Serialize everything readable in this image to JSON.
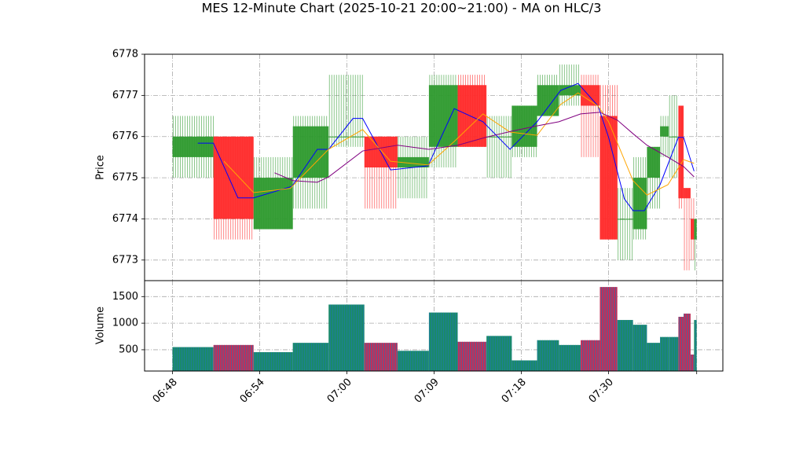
{
  "chart_data": {
    "type": "candlestick",
    "title": "MES 12-Minute Chart (2025-10-21 20:00~21:00) - MA on HLC/3",
    "ylabel": "Price",
    "edges": [
      0,
      0.47,
      0.93,
      1.38,
      1.79,
      2.2,
      2.58,
      2.94,
      3.27,
      3.6,
      3.89,
      4.18,
      4.43,
      4.68,
      4.9,
      5.1,
      5.28,
      5.44,
      5.59,
      5.69,
      5.8,
      5.86,
      5.94,
      5.98,
      6.01
    ],
    "open": [
      6775.5,
      6776,
      6773.75,
      6775,
      6776,
      6776,
      6775.25,
      6775.75,
      6777.25,
      6776,
      6775.75,
      6776.5,
      6777,
      6777.25,
      6776.5,
      6774,
      6773.75,
      6775,
      6776,
      6776,
      6776.75,
      6774.75,
      6774,
      6773.5
    ],
    "high": [
      6776.5,
      6776,
      6775.5,
      6776.5,
      6777.5,
      6776,
      6776,
      6777.5,
      6777.5,
      6776.5,
      6776.75,
      6777.5,
      6777.75,
      6777.5,
      6777.25,
      6774.75,
      6775.5,
      6775.75,
      6776.5,
      6777,
      6776.75,
      6774.75,
      6774.5,
      6774
    ],
    "low": [
      6775,
      6773.5,
      6773.75,
      6774.25,
      6775.75,
      6774.25,
      6774.5,
      6775.25,
      6775.75,
      6775,
      6775.5,
      6776.5,
      6776.75,
      6775.5,
      6773.5,
      6773,
      6773.5,
      6774.25,
      6775.5,
      6775,
      6774.25,
      6772.75,
      6773,
      6772.75
    ],
    "close": [
      6776,
      6774,
      6775,
      6776.25,
      6776,
      6775.25,
      6775.5,
      6777.25,
      6775.75,
      6776,
      6776.75,
      6777.25,
      6777.25,
      6776.75,
      6773.5,
      6774,
      6775,
      6775.75,
      6776.25,
      6776,
      6774.5,
      6774.5,
      6773.5,
      6774
    ],
    "up_color": "#2e9a2e",
    "down_color": "#ff2a2a",
    "ylim": [
      6772.5,
      6778
    ],
    "yticks": [
      6773,
      6774,
      6775,
      6776,
      6777,
      6778
    ],
    "xlim": [
      -0.32,
      6.31
    ],
    "xticks": [
      {
        "value": 0,
        "label": "06:48"
      },
      {
        "value": 1,
        "label": "06:54"
      },
      {
        "value": 2,
        "label": "07:00"
      },
      {
        "value": 3,
        "label": "07:09"
      },
      {
        "value": 4,
        "label": "07:18"
      },
      {
        "value": 5,
        "label": "07:30"
      },
      {
        "value": 6.01,
        "label": null
      }
    ],
    "grid": true,
    "lines": [
      {
        "color": "#0000ff",
        "x": [
          0.29,
          0.47,
          0.75,
          0.93,
          1.37,
          1.66,
          1.79,
          2.07,
          2.18,
          2.5,
          2.93,
          3.23,
          3.56,
          3.87,
          4.18,
          4.45,
          4.65,
          4.88,
          5.0,
          5.18,
          5.28,
          5.41,
          5.59,
          5.8,
          5.86,
          5.98
        ],
        "values": [
          6775.84,
          6775.84,
          6774.51,
          6774.51,
          6774.79,
          6775.69,
          6775.69,
          6776.44,
          6776.44,
          6775.19,
          6775.29,
          6776.68,
          6776.36,
          6775.69,
          6776.36,
          6777.12,
          6777.29,
          6776.74,
          6775.98,
          6774.49,
          6774.2,
          6774.2,
          6774.83,
          6775.98,
          6775.98,
          6775.16
        ]
      },
      {
        "color": "#ffa500",
        "x": [
          0.59,
          0.93,
          1.35,
          1.79,
          2.18,
          2.5,
          2.93,
          3.23,
          3.56,
          3.87,
          4.18,
          4.45,
          4.65,
          4.88,
          5.0,
          5.28,
          5.44,
          5.68,
          5.86,
          5.98
        ],
        "values": [
          6775.4,
          6774.64,
          6774.74,
          6775.69,
          6776.17,
          6775.4,
          6775.31,
          6775.88,
          6776.55,
          6776.11,
          6776.03,
          6776.78,
          6777.06,
          6776.74,
          6776.36,
          6774.93,
          6774.58,
          6774.83,
          6775.44,
          6775.35
        ]
      },
      {
        "color": "#800080",
        "x": [
          1.17,
          1.38,
          1.66,
          1.79,
          2.18,
          2.58,
          2.94,
          3.27,
          3.59,
          3.89,
          4.18,
          4.43,
          4.68,
          4.9,
          5.1,
          5.28,
          5.44,
          5.68,
          5.86,
          5.98
        ],
        "values": [
          6775.12,
          6774.93,
          6774.89,
          6775.02,
          6775.65,
          6775.79,
          6775.69,
          6775.79,
          6775.98,
          6776.13,
          6776.26,
          6776.36,
          6776.55,
          6776.59,
          6776.4,
          6776.07,
          6775.79,
          6775.5,
          6775.27,
          6775.02
        ]
      }
    ],
    "volume": {
      "ylabel": "Volume",
      "values": [
        550,
        590,
        455,
        630,
        1350,
        630,
        480,
        1200,
        650,
        760,
        300,
        680,
        590,
        680,
        1680,
        1060,
        970,
        630,
        740,
        740,
        1120,
        1180,
        410,
        1060
      ],
      "up_color": "#1a8a6a",
      "down_color": "#c0305a",
      "ylim": [
        100,
        1800
      ],
      "yticks": [
        500,
        1000,
        1500
      ]
    }
  }
}
